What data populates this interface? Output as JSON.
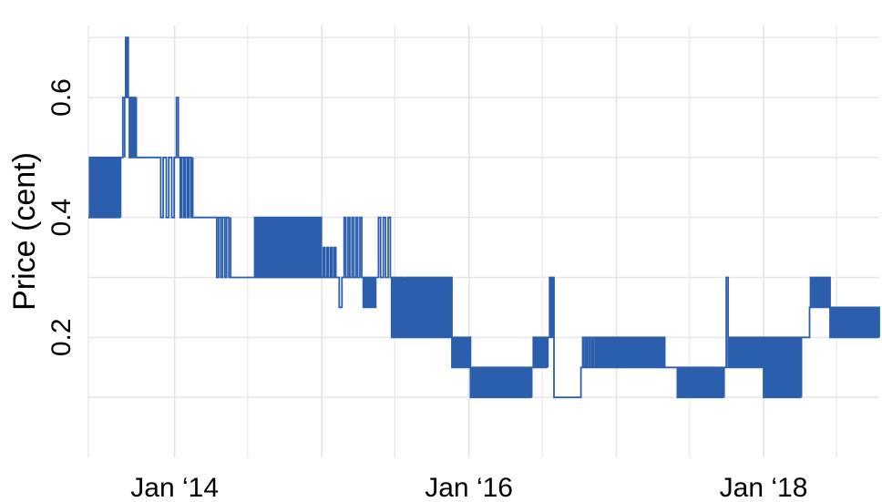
{
  "chart_data": {
    "type": "line",
    "title": "",
    "xlabel": "",
    "ylabel": "Price (cent)",
    "x_ticks": [
      {
        "date": "2014-01-01",
        "label": "Jan ‘14"
      },
      {
        "date": "2016-01-01",
        "label": "Jan ‘16"
      },
      {
        "date": "2018-01-01",
        "label": "Jan ‘18"
      }
    ],
    "y_ticks": [
      0.2,
      0.4,
      0.6
    ],
    "xlim": [
      "2013-06-01",
      "2018-10-15"
    ],
    "ylim": [
      0.0,
      0.72
    ],
    "grid": true,
    "legend": "none",
    "series_color": "#2b5fad",
    "series": [
      {
        "segments": [
          {
            "start": "2013-06-01",
            "end": "2013-07-15",
            "base": 0.4,
            "alt": 0.5,
            "spikes": 8
          },
          {
            "start": "2013-07-15",
            "end": "2013-08-20",
            "base": 0.4,
            "alt": 0.5,
            "spikes": 7
          },
          {
            "start": "2013-08-20",
            "end": "2013-08-30",
            "base": 0.5,
            "alt": 0.6,
            "spikes": 1
          },
          {
            "start": "2013-08-30",
            "end": "2013-09-08",
            "base": 0.6,
            "alt": 0.7,
            "spikes": 2
          },
          {
            "start": "2013-09-08",
            "end": "2013-09-28",
            "base": 0.6,
            "alt": 0.5,
            "spikes": 4
          },
          {
            "start": "2013-09-28",
            "end": "2013-11-20",
            "base": 0.5,
            "alt": 0.5,
            "spikes": 0
          },
          {
            "start": "2013-11-20",
            "end": "2013-12-31",
            "base": 0.5,
            "alt": 0.4,
            "spikes": 3
          },
          {
            "start": "2013-12-31",
            "end": "2014-01-10",
            "base": 0.5,
            "alt": 0.6,
            "spikes": 1
          },
          {
            "start": "2014-01-10",
            "end": "2014-02-15",
            "base": 0.5,
            "alt": 0.4,
            "spikes": 4
          },
          {
            "start": "2014-02-15",
            "end": "2014-04-10",
            "base": 0.4,
            "alt": 0.4,
            "spikes": 0
          },
          {
            "start": "2014-04-10",
            "end": "2014-05-20",
            "base": 0.4,
            "alt": 0.3,
            "spikes": 4
          },
          {
            "start": "2014-05-20",
            "end": "2014-07-15",
            "base": 0.3,
            "alt": 0.3,
            "spikes": 0
          },
          {
            "start": "2014-07-15",
            "end": "2014-12-31",
            "base": 0.3,
            "alt": 0.4,
            "spikes": 26
          },
          {
            "start": "2014-12-31",
            "end": "2015-02-05",
            "base": 0.3,
            "alt": 0.35,
            "spikes": 4
          },
          {
            "start": "2015-02-05",
            "end": "2015-02-20",
            "base": 0.3,
            "alt": 0.25,
            "spikes": 1
          },
          {
            "start": "2015-02-20",
            "end": "2015-04-10",
            "base": 0.3,
            "alt": 0.4,
            "spikes": 5
          },
          {
            "start": "2015-04-10",
            "end": "2015-05-15",
            "base": 0.3,
            "alt": 0.25,
            "spikes": 5
          },
          {
            "start": "2015-05-15",
            "end": "2015-06-20",
            "base": 0.3,
            "alt": 0.4,
            "spikes": 3
          },
          {
            "start": "2015-06-20",
            "end": "2015-07-25",
            "base": 0.3,
            "alt": 0.2,
            "spikes": 6
          },
          {
            "start": "2015-07-25",
            "end": "2015-11-20",
            "base": 0.2,
            "alt": 0.3,
            "spikes": 24
          },
          {
            "start": "2015-11-20",
            "end": "2016-01-05",
            "base": 0.15,
            "alt": 0.2,
            "spikes": 9
          },
          {
            "start": "2016-01-05",
            "end": "2016-06-05",
            "base": 0.1,
            "alt": 0.15,
            "spikes": 30
          },
          {
            "start": "2016-06-05",
            "end": "2016-07-15",
            "base": 0.15,
            "alt": 0.2,
            "spikes": 6
          },
          {
            "start": "2016-07-15",
            "end": "2016-07-30",
            "base": 0.2,
            "alt": 0.3,
            "spikes": 2
          },
          {
            "start": "2016-07-30",
            "end": "2016-10-05",
            "base": 0.1,
            "alt": 0.1,
            "spikes": 0
          },
          {
            "start": "2016-10-05",
            "end": "2016-11-20",
            "base": 0.15,
            "alt": 0.2,
            "spikes": 6
          },
          {
            "start": "2016-11-20",
            "end": "2017-05-01",
            "base": 0.15,
            "alt": 0.2,
            "spikes": 30
          },
          {
            "start": "2017-05-01",
            "end": "2017-06-01",
            "base": 0.15,
            "alt": 0.15,
            "spikes": 0
          },
          {
            "start": "2017-06-01",
            "end": "2017-09-25",
            "base": 0.1,
            "alt": 0.15,
            "spikes": 24
          },
          {
            "start": "2017-09-25",
            "end": "2017-10-05",
            "base": 0.15,
            "alt": 0.3,
            "spikes": 1
          },
          {
            "start": "2017-10-05",
            "end": "2018-01-01",
            "base": 0.15,
            "alt": 0.2,
            "spikes": 18
          },
          {
            "start": "2018-01-01",
            "end": "2018-04-05",
            "base": 0.1,
            "alt": 0.2,
            "spikes": 16
          },
          {
            "start": "2018-04-05",
            "end": "2018-04-25",
            "base": 0.2,
            "alt": 0.2,
            "spikes": 0
          },
          {
            "start": "2018-04-25",
            "end": "2018-06-15",
            "base": 0.25,
            "alt": 0.3,
            "spikes": 12
          },
          {
            "start": "2018-06-15",
            "end": "2018-10-15",
            "base": 0.2,
            "alt": 0.25,
            "spikes": 24
          }
        ]
      }
    ]
  }
}
